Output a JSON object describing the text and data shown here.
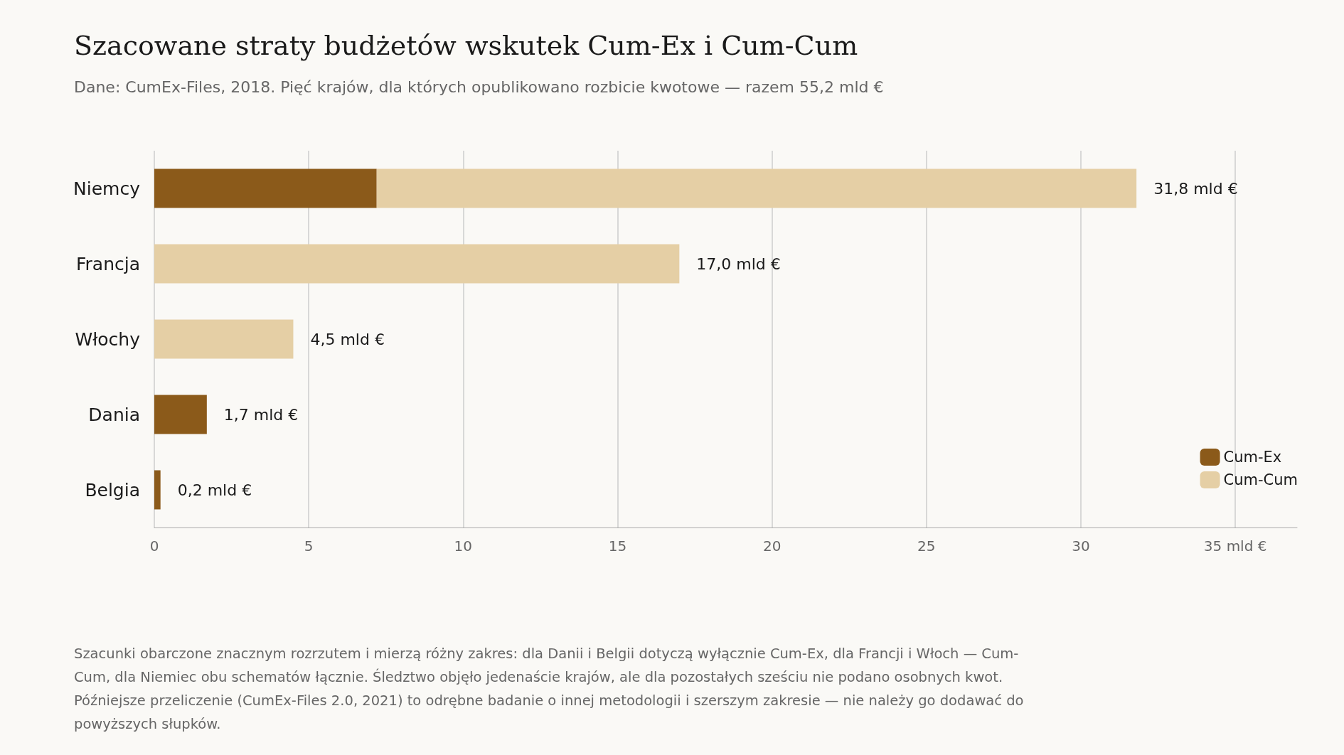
{
  "chart_data": {
    "type": "bar",
    "orientation": "horizontal",
    "stacked": true,
    "title": "Szacowane straty budżetów wskutek Cum-Ex i Cum-Cum",
    "subtitle": "Dane: CumEx-Files, 2018. Pięć krajów, dla których opublikowano rozbicie kwotowe — razem 55,2 mld €",
    "categories": [
      "Niemcy",
      "Francja",
      "Włochy",
      "Dania",
      "Belgia"
    ],
    "series": [
      {
        "name": "Cum-Ex",
        "color": "#8b5a1a",
        "values": [
          7.2,
          null,
          null,
          1.7,
          0.2
        ]
      },
      {
        "name": "Cum-Cum",
        "color": "#e5cfa5",
        "values": [
          24.6,
          17.0,
          4.5,
          null,
          null
        ]
      }
    ],
    "totals": [
      "31,8 mld €",
      "17,0 mld €",
      "4,5 mld €",
      "1,7 mld €",
      "0,2 mld €"
    ],
    "xlim": [
      0,
      37
    ],
    "xticks": [
      0,
      5,
      10,
      15,
      20,
      25,
      30,
      {
        "value": 35,
        "label": "35 mld €"
      }
    ],
    "grid": "x",
    "legend": "bottom right",
    "annotations": [
      "Szacunki obarczone znacznym rozrzutem i mierzą różny zakres: dla Danii i Belgii dotyczą wyłącznie Cum-Ex, dla Francji i Włoch — Cum-Cum, dla Niemiec obu schematów łącznie. Śledztwo objęło jedenaście krajów, ale dla pozostałych sześciu nie podano osobnych kwot. Późniejsze przeliczenie (CumEx-Files 2.0, 2021) to odrębne badanie o innej metodologii i szerszym zakresie — nie należy go dodawać do powyższych słupków."
    ]
  }
}
